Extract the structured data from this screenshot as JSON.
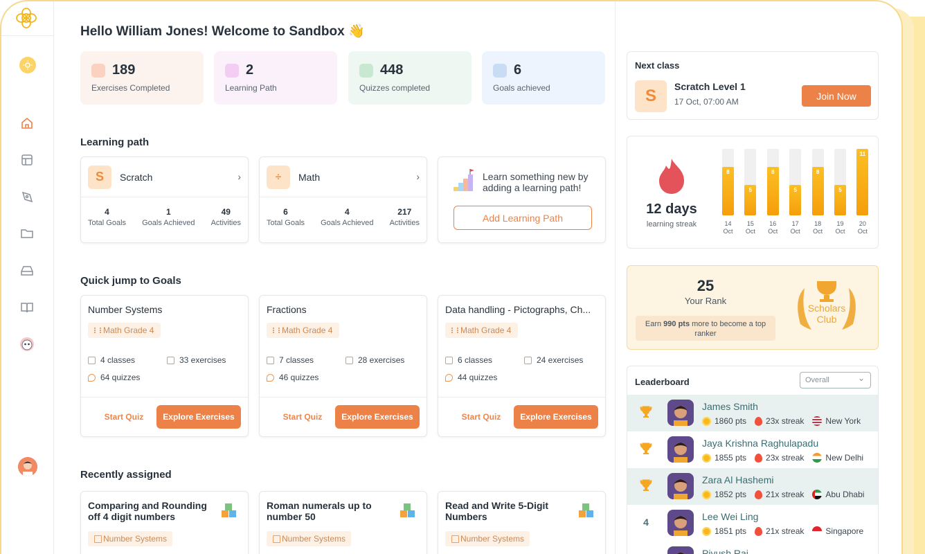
{
  "greeting": "Hello William Jones! Welcome to Sandbox 👋",
  "stats": [
    {
      "value": "189",
      "label": "Exercises Completed",
      "icon": "exercise-icon",
      "bg": "#fdf3ee",
      "icon_color": "#fbd2c0"
    },
    {
      "value": "2",
      "label": "Learning Path",
      "icon": "path-icon",
      "bg": "#fbf1fb",
      "icon_color": "#f3cdf2"
    },
    {
      "value": "448",
      "label": "Quizzes completed",
      "icon": "quiz-icon",
      "bg": "#eef7f1",
      "icon_color": "#c9e8d2"
    },
    {
      "value": "6",
      "label": "Goals achieved",
      "icon": "target-icon",
      "bg": "#edf4fd",
      "icon_color": "#c9dcf6"
    }
  ],
  "sections": {
    "learning_path": "Learning path",
    "quick_jump": "Quick jump to Goals",
    "recently_assigned": "Recently assigned"
  },
  "learning_paths": [
    {
      "logo": "S",
      "title": "Scratch",
      "stats": [
        {
          "value": "4",
          "label": "Total Goals"
        },
        {
          "value": "1",
          "label": "Goals Achieved"
        },
        {
          "value": "49",
          "label": "Activities"
        }
      ]
    },
    {
      "logo": "÷",
      "title": "Math",
      "stats": [
        {
          "value": "6",
          "label": "Total Goals"
        },
        {
          "value": "4",
          "label": "Goals Achieved"
        },
        {
          "value": "217",
          "label": "Activities"
        }
      ]
    }
  ],
  "add_path": {
    "text": "Learn something new by adding a learning path!",
    "button": "Add Learning Path"
  },
  "goals": [
    {
      "title": "Number Systems",
      "tag": "Math Grade 4",
      "classes": "4 classes",
      "exercises": "33 exercises",
      "quizzes": "64 quizzes",
      "quiz_btn": "Start Quiz",
      "explore_btn": "Explore Exercises"
    },
    {
      "title": "Fractions",
      "tag": "Math Grade 4",
      "classes": "7 classes",
      "exercises": "28 exercises",
      "quizzes": "46 quizzes",
      "quiz_btn": "Start Quiz",
      "explore_btn": "Explore Exercises"
    },
    {
      "title": "Data handling - Pictographs, Ch...",
      "tag": "Math Grade 4",
      "classes": "6 classes",
      "exercises": "24 exercises",
      "quizzes": "44 quizzes",
      "quiz_btn": "Start Quiz",
      "explore_btn": "Explore Exercises"
    }
  ],
  "recent": [
    {
      "title": "Comparing and Rounding off 4 digit numbers",
      "tag": "Number Systems"
    },
    {
      "title": "Roman numerals up to number 50",
      "tag": "Number Systems"
    },
    {
      "title": "Read and Write 5-Digit Numbers",
      "tag": "Number Systems"
    }
  ],
  "next_class": {
    "heading": "Next class",
    "logo": "S",
    "name": "Scratch Level 1",
    "time": "17 Oct, 07:00 AM",
    "button": "Join Now"
  },
  "streak": {
    "days": "12 days",
    "label": "learning streak",
    "chart_data": {
      "type": "bar",
      "categories": [
        "14 Oct",
        "15 Oct",
        "16 Oct",
        "17 Oct",
        "18 Oct",
        "19 Oct",
        "20 Oct"
      ],
      "values": [
        8,
        5,
        8,
        5,
        8,
        5,
        11
      ],
      "ylim": [
        0,
        11
      ]
    }
  },
  "rank": {
    "number": "25",
    "label": "Your Rank",
    "note_prefix": "Earn ",
    "note_pts": "990 pts",
    "note_suffix": " more to become a top ranker",
    "badge_line1": "Scholars",
    "badge_line2": "Club"
  },
  "leaderboard": {
    "title": "Leaderboard",
    "filter": "Overall",
    "rows": [
      {
        "rank": "trophy",
        "name": "James Smith",
        "pts": "1860 pts",
        "streak": "23x streak",
        "location": "New York",
        "flag": "us"
      },
      {
        "rank": "trophy",
        "name": "Jaya Krishna Raghulapadu",
        "pts": "1855 pts",
        "streak": "23x streak",
        "location": "New Delhi",
        "flag": "in"
      },
      {
        "rank": "trophy",
        "name": "Zara Al Hashemi",
        "pts": "1852 pts",
        "streak": "21x streak",
        "location": "Abu Dhabi",
        "flag": "ae"
      },
      {
        "rank": "4",
        "name": "Lee Wei Ling",
        "pts": "1851 pts",
        "streak": "21x streak",
        "location": "Singapore",
        "flag": "sg"
      },
      {
        "rank": "",
        "name": "Piyush Rai",
        "pts": "",
        "streak": "",
        "location": "",
        "flag": ""
      }
    ]
  }
}
